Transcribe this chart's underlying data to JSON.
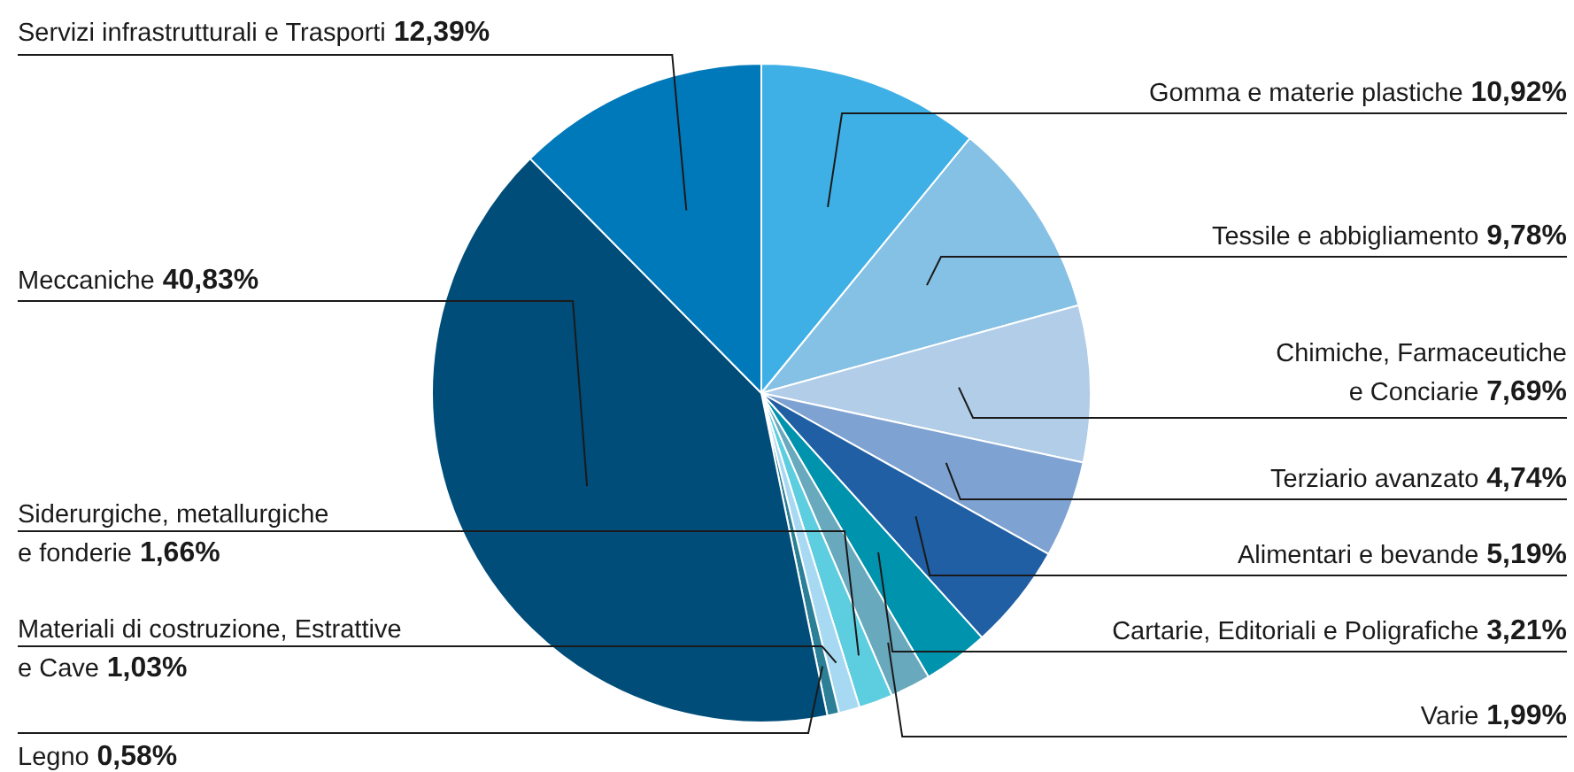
{
  "chart_data": {
    "type": "pie",
    "categories": [
      "Gomma e materie plastiche",
      "Tessile e abbigliamento",
      "Chimiche, Farmaceutiche e Conciarie",
      "Terziario avanzato",
      "Alimentari e bevande",
      "Cartarie, Editoriali e Poligrafiche",
      "Varie",
      "Siderurgiche, metallurgiche e fonderie",
      "Materiali di costruzione, Estrattive e Cave",
      "Legno",
      "Meccaniche",
      "Servizi infrastrutturali e Trasporti"
    ],
    "values": [
      10.92,
      9.78,
      7.69,
      4.74,
      5.19,
      3.21,
      1.99,
      1.66,
      1.03,
      0.58,
      40.83,
      12.39
    ],
    "value_labels": [
      "10,92%",
      "9,78%",
      "7,69%",
      "4,74%",
      "5,19%",
      "3,21%",
      "1,99%",
      "1,66%",
      "1,03%",
      "0,58%",
      "40,83%",
      "12,39%"
    ],
    "colors": [
      "#3eb0e6",
      "#85c0e5",
      "#b1cde8",
      "#7ea2d2",
      "#215fa5",
      "#0093ad",
      "#69a9be",
      "#5dcde0",
      "#a8d9f2",
      "#2b7f96",
      "#004d7a",
      "#0079bb"
    ]
  }
}
